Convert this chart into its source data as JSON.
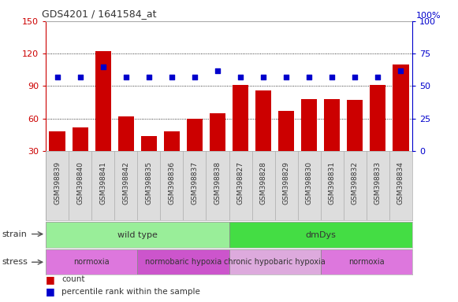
{
  "title": "GDS4201 / 1641584_at",
  "samples": [
    "GSM398839",
    "GSM398840",
    "GSM398841",
    "GSM398842",
    "GSM398835",
    "GSM398836",
    "GSM398837",
    "GSM398838",
    "GSM398827",
    "GSM398828",
    "GSM398829",
    "GSM398830",
    "GSM398831",
    "GSM398832",
    "GSM398833",
    "GSM398834"
  ],
  "counts": [
    48,
    52,
    122,
    62,
    44,
    48,
    60,
    65,
    91,
    86,
    67,
    78,
    78,
    77,
    91,
    110
  ],
  "percentile": [
    57,
    57,
    65,
    57,
    57,
    57,
    57,
    62,
    57,
    57,
    57,
    57,
    57,
    57,
    57,
    62
  ],
  "ylim_left": [
    30,
    150
  ],
  "ylim_right": [
    0,
    100
  ],
  "yticks_left": [
    30,
    60,
    90,
    120,
    150
  ],
  "yticks_right": [
    0,
    25,
    50,
    75,
    100
  ],
  "bar_color": "#cc0000",
  "dot_color": "#0000cc",
  "strain_groups": [
    {
      "label": "wild type",
      "start": 0,
      "end": 8,
      "color": "#99ee99"
    },
    {
      "label": "dmDys",
      "start": 8,
      "end": 16,
      "color": "#44dd44"
    }
  ],
  "stress_groups": [
    {
      "label": "normoxia",
      "start": 0,
      "end": 4,
      "color": "#dd77dd"
    },
    {
      "label": "normobaric hypoxia",
      "start": 4,
      "end": 8,
      "color": "#cc55cc"
    },
    {
      "label": "chronic hypobaric hypoxia",
      "start": 8,
      "end": 12,
      "color": "#ddaadd"
    },
    {
      "label": "normoxia",
      "start": 12,
      "end": 16,
      "color": "#dd77dd"
    }
  ],
  "legend_items": [
    {
      "label": "count",
      "color": "#cc0000"
    },
    {
      "label": "percentile rank within the sample",
      "color": "#0000cc"
    }
  ]
}
